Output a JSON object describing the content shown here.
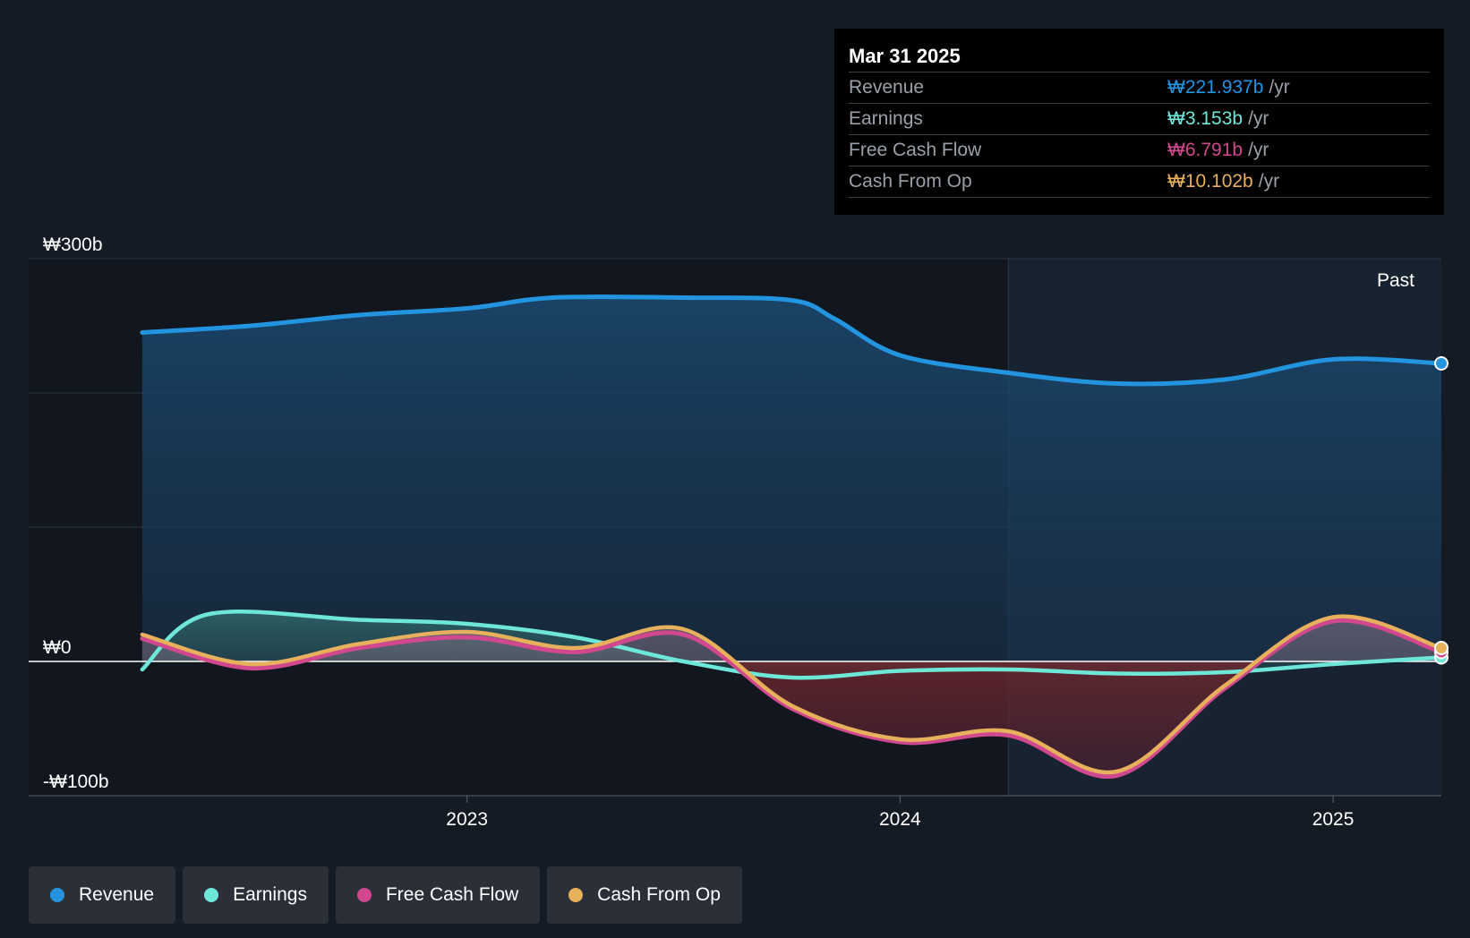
{
  "colors": {
    "background": "#151b24",
    "revenue": "#2394df",
    "earnings": "#6ee7d9",
    "fcf": "#d0488e",
    "cfo": "#e6b05c",
    "negative_fill": "#8a2a2a",
    "gray_line": "#9a9a9a"
  },
  "tooltip": {
    "date": "Mar 31 2025",
    "rows": [
      {
        "name": "Revenue",
        "value": "₩221.937b",
        "unit": "/yr",
        "color": "#2394df"
      },
      {
        "name": "Earnings",
        "value": "₩3.153b",
        "unit": "/yr",
        "color": "#6ee7d9"
      },
      {
        "name": "Free Cash Flow",
        "value": "₩6.791b",
        "unit": "/yr",
        "color": "#d0488e"
      },
      {
        "name": "Cash From Op",
        "value": "₩10.102b",
        "unit": "/yr",
        "color": "#e6b05c"
      }
    ]
  },
  "legend": [
    {
      "label": "Revenue",
      "color": "#2394df"
    },
    {
      "label": "Earnings",
      "color": "#6ee7d9"
    },
    {
      "label": "Free Cash Flow",
      "color": "#d0488e"
    },
    {
      "label": "Cash From Op",
      "color": "#e6b05c"
    }
  ],
  "chart_data": {
    "type": "area",
    "y_tick_labels": [
      "₩300b",
      "₩0",
      "-₩100b"
    ],
    "x_tick_labels": [
      "2023",
      "2024",
      "2025"
    ],
    "x_ticks": [
      2023.0,
      2024.0,
      2025.0
    ],
    "past_label": "Past",
    "ylim": [
      -100,
      300
    ],
    "xlim": [
      2022.12,
      2025.25
    ],
    "past_start": 2024.25,
    "zero_line": true,
    "grid": true,
    "legend_position": "bottom-left",
    "series": [
      {
        "name": "Revenue",
        "color": "#2394df",
        "x": [
          2022.25,
          2022.5,
          2022.75,
          2023.0,
          2023.2,
          2023.5,
          2023.75,
          2023.85,
          2024.0,
          2024.25,
          2024.5,
          2024.75,
          2025.0,
          2025.25
        ],
        "y": [
          245,
          250,
          258,
          263,
          271,
          271,
          269,
          255,
          228,
          215,
          207,
          210,
          225,
          222
        ]
      },
      {
        "name": "Earnings",
        "color": "#6ee7d9",
        "x": [
          2022.25,
          2022.4,
          2022.75,
          2023.0,
          2023.25,
          2023.5,
          2023.75,
          2024.0,
          2024.25,
          2024.5,
          2024.75,
          2025.0,
          2025.25
        ],
        "y": [
          -6,
          35,
          31,
          28,
          18,
          0,
          -12,
          -7,
          -6,
          -9,
          -8,
          -2,
          3
        ]
      },
      {
        "name": "Free Cash Flow",
        "color": "#d0488e",
        "x": [
          2022.25,
          2022.5,
          2022.75,
          2023.0,
          2023.25,
          2023.5,
          2023.75,
          2024.0,
          2024.25,
          2024.5,
          2024.75,
          2025.0,
          2025.25
        ],
        "y": [
          17,
          -5,
          10,
          18,
          7,
          20,
          -35,
          -60,
          -55,
          -85,
          -20,
          30,
          7
        ]
      },
      {
        "name": "Cash From Op",
        "color": "#e6b05c",
        "x": [
          2022.25,
          2022.5,
          2022.75,
          2023.0,
          2023.25,
          2023.5,
          2023.75,
          2024.0,
          2024.25,
          2024.5,
          2024.75,
          2025.0,
          2025.25
        ],
        "y": [
          20,
          -2,
          13,
          22,
          10,
          24,
          -33,
          -58,
          -52,
          -82,
          -18,
          33,
          10
        ]
      }
    ]
  }
}
